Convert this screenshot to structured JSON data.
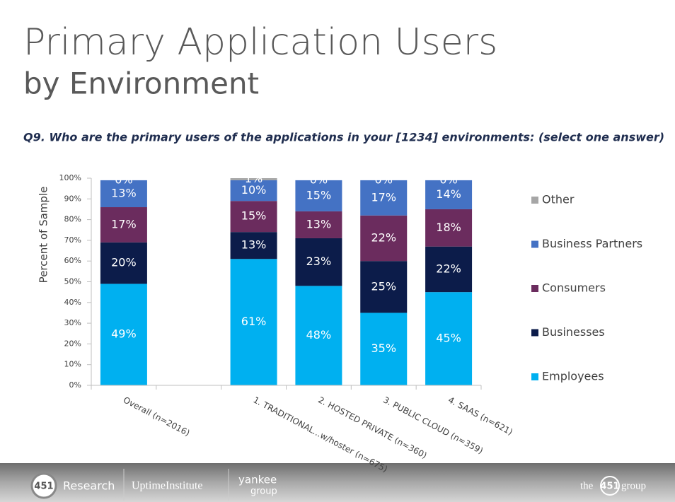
{
  "title": "Primary Application Users",
  "subtitle": "by Environment",
  "question": "Q9.  Who are the primary users of the applications in your [1234]  environments: (select one answer)",
  "footer": {
    "logos": [
      "451",
      "Research",
      "UptimeInstitute",
      "yankee",
      "group",
      "the",
      "451",
      "group"
    ]
  },
  "chart_data": {
    "type": "stacked-bar",
    "y_label": "Percent of Sample",
    "categories": [
      "Overall (n=2016)",
      null,
      "1. TRADITIONAL...w/hoster (n=675)",
      "2. HOSTED PRIVATE (n=360)",
      "3. PUBLIC CLOUD (n=359)",
      "4. SAAS (n=621)"
    ],
    "series": [
      {
        "name": "Employees",
        "color": "#00b0f0",
        "values": [
          49,
          null,
          61,
          48,
          35,
          45
        ],
        "value_labels": [
          "49%",
          null,
          "61%",
          "48%",
          "35%",
          "45%"
        ]
      },
      {
        "name": "Businesses",
        "color": "#0c1c4a",
        "values": [
          20,
          null,
          13,
          23,
          25,
          22
        ],
        "value_labels": [
          "20%",
          null,
          "13%",
          "23%",
          "25%",
          "22%"
        ]
      },
      {
        "name": "Consumers",
        "color": "#6b2c5e",
        "values": [
          17,
          null,
          15,
          13,
          22,
          18
        ],
        "value_labels": [
          "17%",
          null,
          "15%",
          "13%",
          "22%",
          "18%"
        ]
      },
      {
        "name": "Business Partners",
        "color": "#4472c4",
        "values": [
          13,
          null,
          10,
          15,
          17,
          14
        ],
        "value_labels": [
          "13%",
          null,
          "10%",
          "15%",
          "17%",
          "14%"
        ]
      },
      {
        "name": "Other",
        "color": "#a6a6a6",
        "values": [
          0,
          null,
          1,
          0,
          0,
          0
        ],
        "value_labels": [
          "0%",
          null,
          "1%",
          "0%",
          "0%",
          "0%"
        ]
      }
    ],
    "ylim": [
      0,
      100
    ],
    "yticks": [
      {
        "value": 0,
        "label": "0%"
      },
      {
        "value": 10,
        "label": "10%"
      },
      {
        "value": 20,
        "label": "20%"
      },
      {
        "value": 30,
        "label": "30%"
      },
      {
        "value": 40,
        "label": "40%"
      },
      {
        "value": 50,
        "label": "50%"
      },
      {
        "value": 60,
        "label": "60%"
      },
      {
        "value": 70,
        "label": "70%"
      },
      {
        "value": 80,
        "label": "80%"
      },
      {
        "value": 90,
        "label": "90%"
      },
      {
        "value": 100,
        "label": "100%"
      }
    ],
    "grid": false,
    "legend": "right"
  }
}
